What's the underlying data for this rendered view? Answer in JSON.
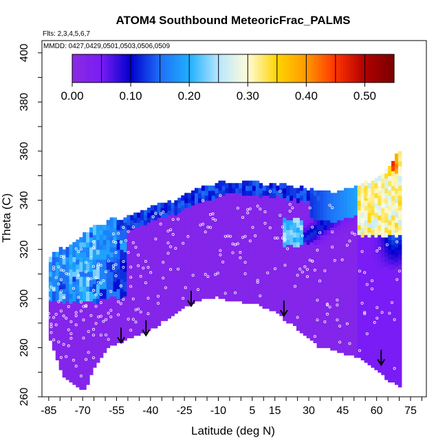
{
  "chart_data": {
    "type": "heatmap",
    "title": "ATOM4 Southbound MeteoricFrac_PALMS",
    "flights_note": "Flts: 2,3,4,5,6,7",
    "dates_note": "MMDD: 0427,0429,0501,0503,0506,0509",
    "xlabel": "Latitude (deg N)",
    "ylabel": "Theta (C)",
    "xlim": [
      -88,
      82
    ],
    "ylim": [
      260,
      405
    ],
    "x_ticks": [
      -85,
      -70,
      -55,
      -40,
      -25,
      -10,
      5,
      15,
      30,
      45,
      60,
      75
    ],
    "x_tick_labels": [
      "-85",
      "-70",
      "-55",
      "-40",
      "-25",
      "-10",
      "5",
      "15",
      "30",
      "45",
      "60",
      "75"
    ],
    "y_ticks": [
      260,
      280,
      300,
      320,
      340,
      360,
      380,
      400
    ],
    "y_tick_labels": [
      "260",
      "280",
      "300",
      "320",
      "340",
      "360",
      "380",
      "400"
    ],
    "grid": false,
    "legend": "top colorbar",
    "colorbar": {
      "min": 0.0,
      "max": 0.55,
      "ticks": [
        0.0,
        0.1,
        0.2,
        0.3,
        0.4,
        0.5
      ],
      "tick_labels": [
        "0.00",
        "0.10",
        "0.20",
        "0.30",
        "0.40",
        "0.50"
      ],
      "divisions": 11,
      "colors": [
        "#8a2be2",
        "#7a1cf5",
        "#0000cc",
        "#1e6ff8",
        "#1fb0ff",
        "#b8e6ff",
        "#fffcd8",
        "#ffd400",
        "#ff9900",
        "#ff3300",
        "#b00000",
        "#7a0000"
      ]
    },
    "tropopause_boundary": {
      "latitude": [
        -85,
        -83,
        -80,
        -78,
        -75,
        -72,
        -70,
        -68,
        -65,
        -63,
        -60,
        -58,
        -55,
        -52,
        -50,
        -47,
        -45,
        -42,
        -40,
        -37,
        -35,
        -32,
        -30,
        -27,
        -25,
        -22,
        -20,
        -17,
        -15,
        -12,
        -10,
        -7,
        -5,
        -2,
        0,
        2,
        5,
        8,
        10,
        13,
        15,
        18,
        20,
        23,
        25,
        28,
        30,
        33,
        35,
        38,
        40,
        43,
        45,
        48,
        50,
        53,
        55,
        58,
        60,
        63,
        65,
        68,
        70,
        71
      ],
      "theta_top": [
        317,
        317,
        319,
        320,
        322,
        323,
        325,
        326,
        328,
        329,
        330,
        331,
        332,
        332,
        333,
        334,
        334,
        335,
        336,
        337,
        338,
        339,
        339,
        340,
        341,
        342,
        343,
        344,
        345,
        346,
        346,
        347,
        347,
        347,
        347,
        347,
        347,
        347,
        346,
        346,
        346,
        346,
        346,
        345,
        345,
        344,
        344,
        344,
        343,
        343,
        343,
        343,
        344,
        344,
        345,
        346,
        346,
        347,
        349,
        350,
        352,
        356,
        359,
        359
      ],
      "theta_bottom": [
        286,
        280,
        272,
        268,
        266,
        264,
        263,
        265,
        272,
        275,
        279,
        281,
        282,
        283,
        284,
        285,
        286,
        287,
        288,
        289,
        291,
        292,
        294,
        296,
        297,
        298,
        299,
        300,
        300,
        301,
        301,
        300,
        299,
        299,
        299,
        298,
        298,
        298,
        297,
        296,
        295,
        293,
        291,
        290,
        288,
        286,
        284,
        282,
        280,
        280,
        280,
        279,
        278,
        277,
        277,
        276,
        275,
        273,
        271,
        269,
        267,
        266,
        264,
        264
      ]
    },
    "high_value_features": [
      {
        "latitude": [
          -76,
          -65
        ],
        "theta": [
          310,
          325
        ],
        "value": 0.2
      },
      {
        "latitude": [
          -63,
          -55
        ],
        "theta": [
          318,
          333
        ],
        "value": 0.2
      },
      {
        "latitude": [
          18,
          27
        ],
        "theta": [
          322,
          332
        ],
        "value": 0.25
      },
      {
        "latitude": [
          52,
          71
        ],
        "theta": [
          326,
          358
        ],
        "value": 0.35
      },
      {
        "latitude": [
          66,
          70
        ],
        "theta": [
          352,
          360
        ],
        "value": 0.5
      }
    ],
    "arrow_latitudes": [
      -53,
      -42,
      -22,
      19,
      62
    ],
    "arrow_theta_tips": [
      282,
      285,
      297,
      293,
      273
    ]
  }
}
